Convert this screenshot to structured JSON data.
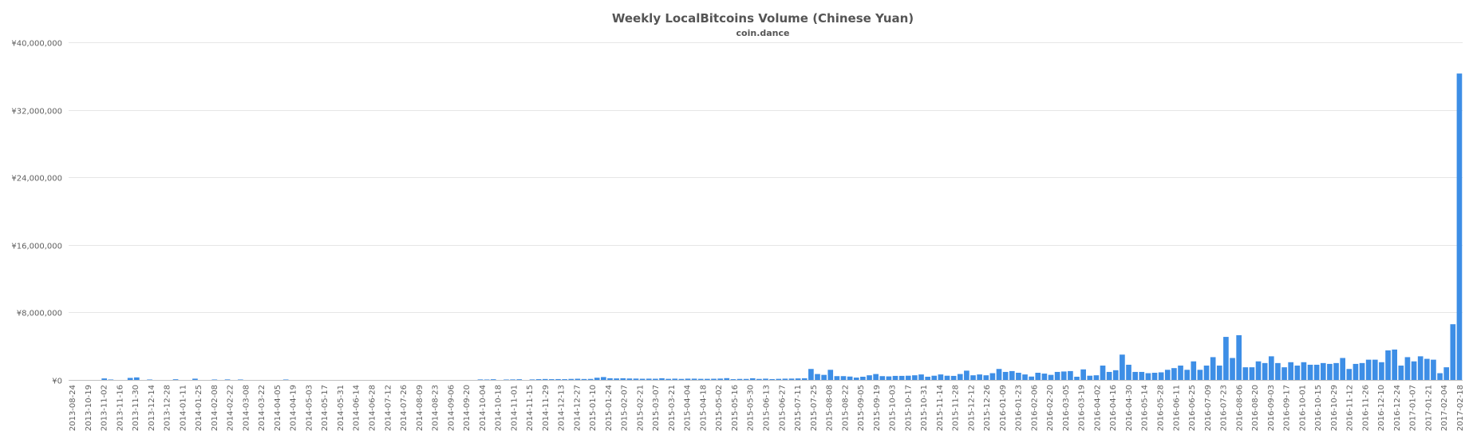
{
  "chart_data": {
    "type": "bar",
    "title": "Weekly LocalBitcoins Volume (Chinese Yuan)",
    "subtitle": "coin.dance",
    "xlabel": "",
    "ylabel": "",
    "ylim": [
      0,
      40000000
    ],
    "grid": true,
    "legend": "none",
    "colors": {
      "bar": "#3d8ee6",
      "grid": "#e6e6e6",
      "text": "#606060",
      "title": "#555555"
    },
    "yticks": [
      {
        "value": 0,
        "label": "¥0"
      },
      {
        "value": 8000000,
        "label": "¥8,000,000"
      },
      {
        "value": 16000000,
        "label": "¥16,000,000"
      },
      {
        "value": 24000000,
        "label": "¥24,000,000"
      },
      {
        "value": 32000000,
        "label": "¥32,000,000"
      },
      {
        "value": 40000000,
        "label": "¥40,000,000"
      }
    ],
    "xtick_labels": [
      "2013-08-24",
      "2013-10-19",
      "2013-11-02",
      "2013-11-16",
      "2013-11-30",
      "2013-12-14",
      "2013-12-28",
      "2014-01-11",
      "2014-01-25",
      "2014-02-08",
      "2014-02-22",
      "2014-03-08",
      "2014-03-22",
      "2014-04-05",
      "2014-04-19",
      "2014-05-03",
      "2014-05-17",
      "2014-05-31",
      "2014-06-14",
      "2014-06-28",
      "2014-07-12",
      "2014-07-26",
      "2014-08-09",
      "2014-08-23",
      "2014-09-06",
      "2014-09-20",
      "2014-10-04",
      "2014-10-18",
      "2014-11-01",
      "2014-11-15",
      "2014-11-29",
      "2014-12-13",
      "2014-12-27",
      "2015-01-10",
      "2015-01-24",
      "2015-02-07",
      "2015-02-21",
      "2015-03-07",
      "2015-03-21",
      "2015-04-04",
      "2015-04-18",
      "2015-05-02",
      "2015-05-16",
      "2015-05-30",
      "2015-06-13",
      "2015-06-27",
      "2015-07-11",
      "2015-07-25",
      "2015-08-08",
      "2015-08-22",
      "2015-09-05",
      "2015-09-19",
      "2015-10-03",
      "2015-10-17",
      "2015-10-31",
      "2015-11-14",
      "2015-11-28",
      "2015-12-12",
      "2015-12-26",
      "2016-01-09",
      "2016-01-23",
      "2016-02-06",
      "2016-02-20",
      "2016-03-05",
      "2016-03-19",
      "2016-04-02",
      "2016-04-16",
      "2016-04-30",
      "2016-05-14",
      "2016-05-28",
      "2016-06-11",
      "2016-06-25",
      "2016-07-09",
      "2016-07-23",
      "2016-08-06",
      "2016-08-20",
      "2016-09-03",
      "2016-09-17",
      "2016-10-01",
      "2016-10-15",
      "2016-10-29",
      "2016-11-12",
      "2016-11-26",
      "2016-12-10",
      "2016-12-24",
      "2017-01-07",
      "2017-01-21",
      "2017-02-04",
      "2017-02-18"
    ],
    "values": [
      0,
      0,
      0,
      0,
      0,
      180000,
      50000,
      0,
      0,
      240000,
      300000,
      0,
      50000,
      0,
      0,
      0,
      80000,
      0,
      0,
      150000,
      0,
      0,
      50000,
      0,
      60000,
      0,
      50000,
      0,
      0,
      0,
      0,
      0,
      0,
      50000,
      0,
      0,
      0,
      0,
      0,
      0,
      0,
      0,
      0,
      0,
      0,
      0,
      0,
      0,
      0,
      0,
      0,
      0,
      0,
      0,
      0,
      0,
      0,
      0,
      0,
      0,
      0,
      0,
      0,
      60000,
      50000,
      80000,
      0,
      50000,
      60000,
      80000,
      0,
      60000,
      90000,
      110000,
      90000,
      100000,
      90000,
      120000,
      140000,
      110000,
      120000,
      260000,
      340000,
      200000,
      180000,
      200000,
      170000,
      160000,
      140000,
      150000,
      140000,
      200000,
      130000,
      150000,
      120000,
      150000,
      150000,
      130000,
      130000,
      140000,
      160000,
      210000,
      90000,
      120000,
      120000,
      200000,
      120000,
      150000,
      100000,
      130000,
      150000,
      160000,
      180000,
      200000,
      1300000,
      700000,
      600000,
      1200000,
      450000,
      450000,
      400000,
      280000,
      380000,
      550000,
      700000,
      450000,
      420000,
      480000,
      480000,
      500000,
      550000,
      650000,
      380000,
      500000,
      650000,
      500000,
      480000,
      700000,
      1100000,
      550000,
      650000,
      550000,
      800000,
      1300000,
      950000,
      1050000,
      850000,
      650000,
      400000,
      850000,
      750000,
      600000,
      950000,
      1000000,
      1050000,
      380000,
      1250000,
      500000,
      550000,
      1700000,
      950000,
      1150000,
      3000000,
      1800000,
      950000,
      950000,
      800000,
      850000,
      900000,
      1200000,
      1400000,
      1700000,
      1200000,
      2200000,
      1200000,
      1700000,
      2700000,
      1700000,
      5100000,
      2600000,
      5300000,
      1500000,
      1500000,
      2200000,
      2000000,
      2800000,
      2000000,
      1500000,
      2100000,
      1700000,
      2100000,
      1800000,
      1800000,
      2000000,
      1900000,
      2000000,
      2600000,
      1300000,
      1900000,
      2000000,
      2400000,
      2400000,
      2100000,
      3500000,
      3600000,
      1700000,
      2700000,
      2200000,
      2800000,
      2500000,
      2400000,
      800000,
      1500000,
      6600000,
      36300000
    ]
  }
}
